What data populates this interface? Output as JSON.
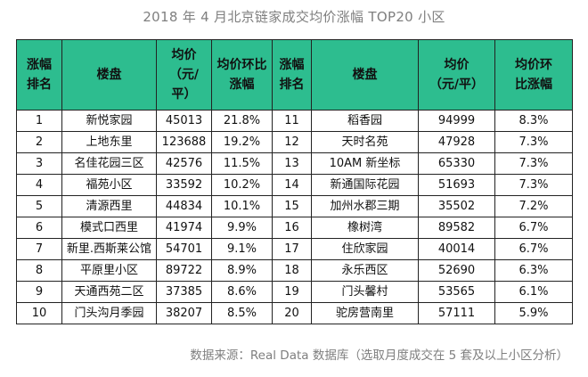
{
  "title": "2018 年 4 月北京链家成交均价涨幅 TOP20 小区",
  "headers": [
    "涨幅排名",
    "楼盘",
    "均价（元/平）",
    "均价环比涨幅",
    "涨幅排名",
    "楼盘",
    "均价（元/平）",
    "均价环比涨幅"
  ],
  "rows": [
    {
      "rank_a": "1",
      "name_a": "新悦家园",
      "price_a": "45013",
      "pct_a": "21.8%",
      "rank_b": "11",
      "name_b": "稻香园",
      "price_b": "94999",
      "pct_b": "8.3%"
    },
    {
      "rank_a": "2",
      "name_a": "上地东里",
      "price_a": "123688",
      "pct_a": "19.2%",
      "rank_b": "12",
      "name_b": "天时名苑",
      "price_b": "47928",
      "pct_b": "7.3%"
    },
    {
      "rank_a": "3",
      "name_a": "名佳花园三区",
      "price_a": "42576",
      "pct_a": "11.5%",
      "rank_b": "13",
      "name_b": "10AM 新坐标",
      "price_b": "65330",
      "pct_b": "7.3%"
    },
    {
      "rank_a": "4",
      "name_a": "福苑小区",
      "price_a": "33592",
      "pct_a": "10.2%",
      "rank_b": "14",
      "name_b": "新通国际花园",
      "price_b": "51693",
      "pct_b": "7.3%"
    },
    {
      "rank_a": "5",
      "name_a": "清源西里",
      "price_a": "44834",
      "pct_a": "10.1%",
      "rank_b": "15",
      "name_b": "加州水郡三期",
      "price_b": "35502",
      "pct_b": "7.2%"
    },
    {
      "rank_a": "6",
      "name_a": "模式口西里",
      "price_a": "41974",
      "pct_a": "9.9%",
      "rank_b": "16",
      "name_b": "橡树湾",
      "price_b": "89582",
      "pct_b": "6.7%"
    },
    {
      "rank_a": "7",
      "name_a": "新里.西斯莱公馆",
      "price_a": "54701",
      "pct_a": "9.1%",
      "rank_b": "17",
      "name_b": "住欣家园",
      "price_b": "40014",
      "pct_b": "6.7%"
    },
    {
      "rank_a": "8",
      "name_a": "平原里小区",
      "price_a": "89722",
      "pct_a": "8.9%",
      "rank_b": "18",
      "name_b": "永乐西区",
      "price_b": "52690",
      "pct_b": "6.3%"
    },
    {
      "rank_a": "9",
      "name_a": "天通西苑二区",
      "price_a": "37385",
      "pct_a": "8.6%",
      "rank_b": "19",
      "name_b": "门头馨村",
      "price_b": "53565",
      "pct_b": "6.1%"
    },
    {
      "rank_a": "10",
      "name_a": "门头沟月季园",
      "price_a": "38207",
      "pct_a": "8.5%",
      "rank_b": "20",
      "name_b": "驼房营南里",
      "price_b": "57111",
      "pct_b": "5.9%"
    }
  ],
  "source": "数据来源：Real  Data 数据库（选取月度成交在 5 套及以上小区分析）"
}
